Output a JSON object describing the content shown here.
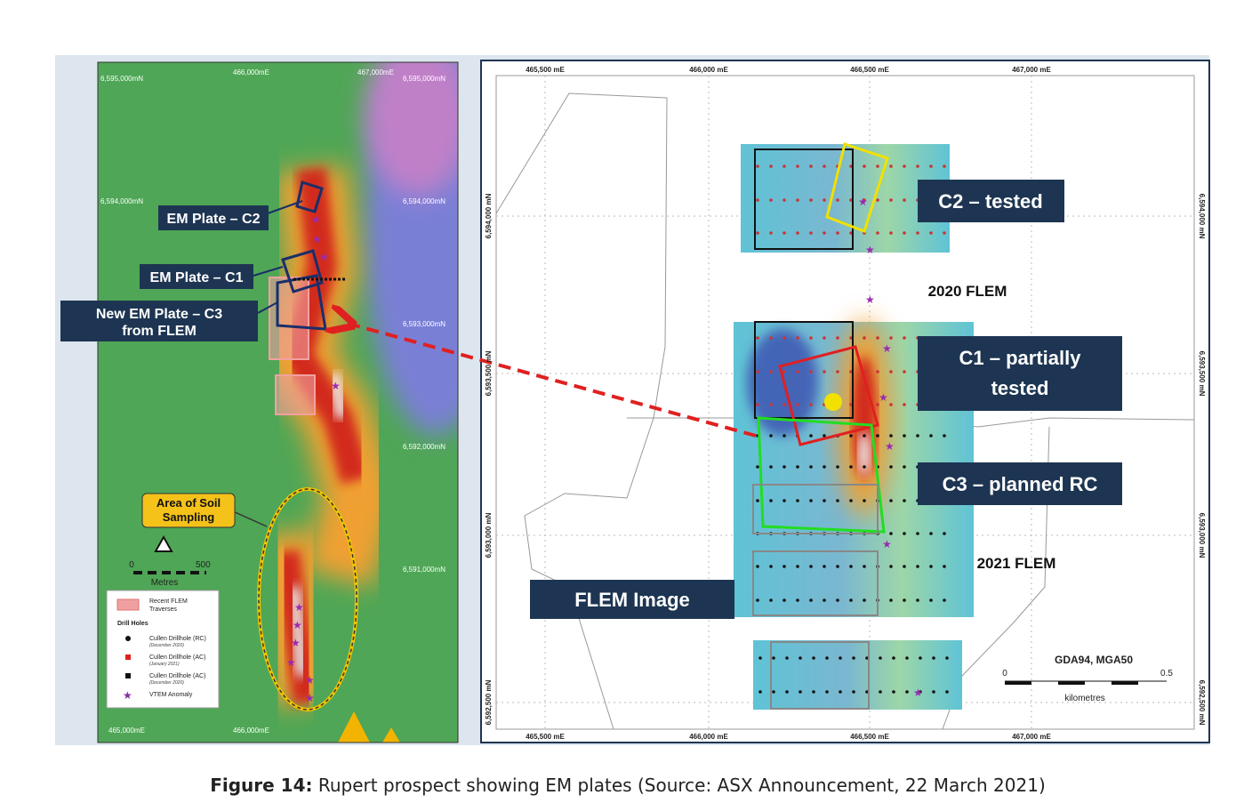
{
  "left_map": {
    "easting_top": [
      "466,000mE",
      "467,000mE"
    ],
    "easting_bottom": [
      "465,000mE",
      "466,000mE"
    ],
    "northing_left": [
      "6,595,000mN",
      "6,594,000mN"
    ],
    "northing_right": [
      "6,595,000mN",
      "6,594,000mN",
      "6,593,000mN",
      "6,592,000mN",
      "6,591,000mN"
    ],
    "labels": {
      "c2": "EM Plate – C2",
      "c1": "EM Plate – C1",
      "c3": [
        "New EM Plate – C3",
        "from FLEM"
      ],
      "soil": [
        "Area of Soil",
        "Sampling"
      ]
    },
    "scale": {
      "start": "0",
      "end": "500",
      "unit": "Metres"
    },
    "legend": {
      "flem": [
        "Recent FLEM",
        "Traverses"
      ],
      "heading": "Drill Holes",
      "items": [
        {
          "label": "Cullen Drillhole (RC)",
          "note": "(December 2020)"
        },
        {
          "label": "Cullen Drillhole (AC)",
          "note": "(January 2021)"
        },
        {
          "label": "Cullen Drillhole (AC)",
          "note": "(December 2020)"
        },
        {
          "label": "VTEM Anomaly"
        }
      ]
    }
  },
  "right_map": {
    "easting": [
      "465,500 mE",
      "466,000 mE",
      "466,500 mE",
      "467,000 mE"
    ],
    "northing": [
      "6,594,000 mN",
      "6,593,500 mN",
      "6,593,000 mN",
      "6,592,500 mN"
    ],
    "labels": {
      "c2": "C2 – tested",
      "flem2020": "2020 FLEM",
      "c1": [
        "C1 – partially",
        "tested"
      ],
      "c3": "C3 – planned RC",
      "flem2021": "2021 FLEM",
      "flem_image": "FLEM Image"
    },
    "datum": "GDA94, MGA50",
    "scale": {
      "start": "0",
      "end": "0.5",
      "unit": "kilometres"
    }
  },
  "caption": {
    "label": "Figure 14:",
    "text": "Rupert prospect showing EM plates (Source: ASX Announcement, 22 March 2021)"
  }
}
